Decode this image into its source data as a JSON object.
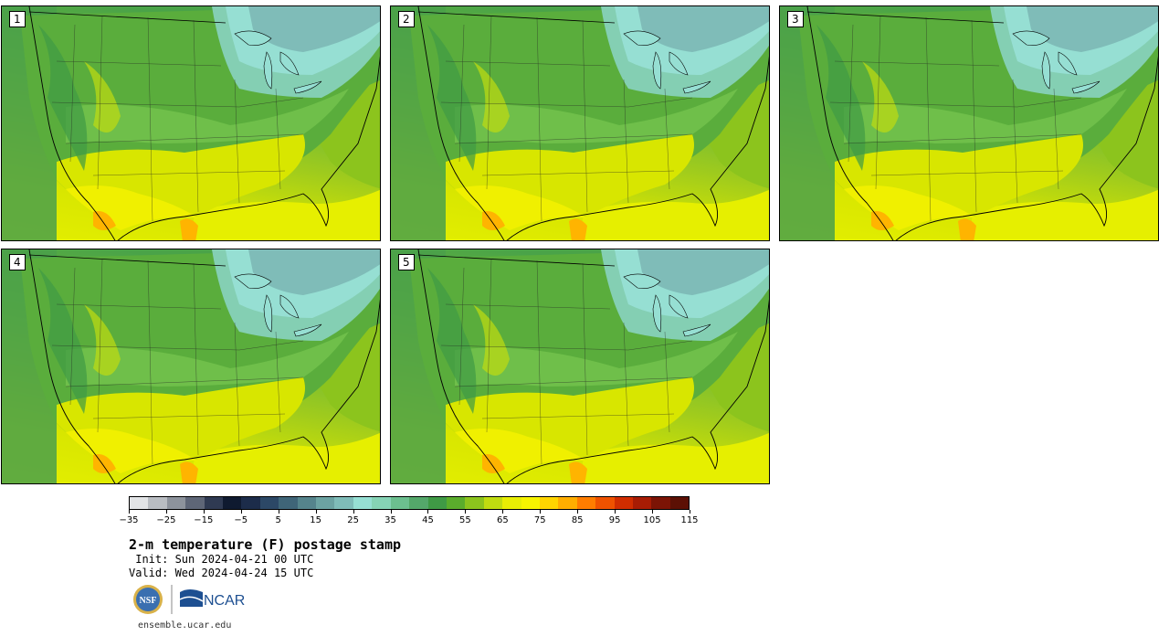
{
  "panels": [
    {
      "label": "1"
    },
    {
      "label": "2"
    },
    {
      "label": "3"
    },
    {
      "label": "4"
    },
    {
      "label": "5"
    }
  ],
  "colorbar": {
    "colors": [
      "#e2e4e6",
      "#b9bdc2",
      "#8d939c",
      "#5e6677",
      "#2f3a52",
      "#0f1a30",
      "#1c2c4a",
      "#2c4866",
      "#3f6578",
      "#55848c",
      "#6ca3a2",
      "#7fbcb8",
      "#96dfd3",
      "#86d3b5",
      "#6cbf8f",
      "#54a86a",
      "#3f9a45",
      "#5aad2c",
      "#8cc41d",
      "#c0dc10",
      "#e8ee04",
      "#f7f400",
      "#ffd500",
      "#ffae00",
      "#ff7d00",
      "#ef5200",
      "#d12d00",
      "#a81c04",
      "#7c1405",
      "#5c1004"
    ],
    "tick_labels": [
      "−35",
      "−25",
      "−15",
      "−5",
      "5",
      "15",
      "25",
      "35",
      "45",
      "55",
      "65",
      "75",
      "85",
      "95",
      "105",
      "115"
    ]
  },
  "title": "2-m temperature (F) postage stamp",
  "init": " Init: Sun 2024-04-21 00 UTC",
  "valid": "Valid: Wed 2024-04-24 15 UTC",
  "logos": {
    "nsf": "NSF",
    "ncar": "NCAR"
  },
  "footer": "ensemble.ucar.edu"
}
